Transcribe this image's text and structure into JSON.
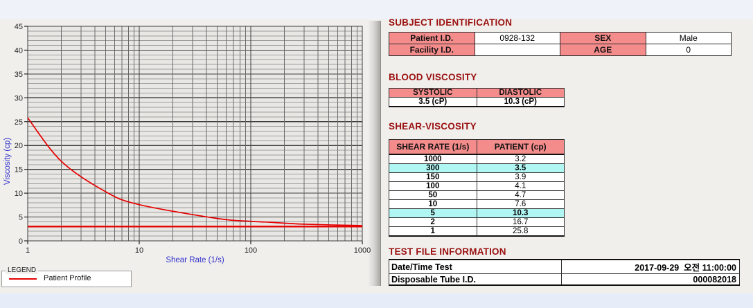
{
  "colors": {
    "title_red": "#9b1111",
    "table_header_pink": "#f58c8c",
    "highlight_cyan": "#b0f6f3",
    "curve_red": "#e60000",
    "axis_label_blue": "#3333cc",
    "grid_major": "#3d3d3d",
    "grid_minor": "#9d9d9d",
    "plot_bg": "#e8e7e4"
  },
  "chart_data": {
    "type": "line",
    "xlabel": "Shear Rate (1/s)",
    "ylabel": "Viscosity (cp)",
    "x_scale": "log",
    "xlim": [
      1,
      1000
    ],
    "ylim": [
      0,
      45
    ],
    "x_ticks": [
      "1",
      "10",
      "100",
      "1000"
    ],
    "y_major_step": 5,
    "y_minor_step": 1,
    "grid": "on",
    "series": [
      {
        "name": "Patient Profile",
        "color": "#e60000",
        "x": [
          1,
          2,
          5,
          10,
          50,
          100,
          150,
          300,
          1000
        ],
        "y": [
          25.8,
          16.7,
          10.3,
          7.6,
          4.7,
          4.1,
          3.9,
          3.5,
          3.2
        ]
      }
    ],
    "reference_line": {
      "y": 3.0,
      "color": "#e60000"
    },
    "legend": {
      "title": "LEGEND",
      "position": "bottom-left",
      "entries": [
        {
          "label": "Patient Profile",
          "color": "#e60000"
        }
      ]
    }
  },
  "subject_identification": {
    "title": "SUBJECT IDENTIFICATION",
    "rows": [
      {
        "label1": "Patient I.D.",
        "value1": "0928-132",
        "label2": "SEX",
        "value2": "Male"
      },
      {
        "label1": "Facility I.D.",
        "value1": "",
        "label2": "AGE",
        "value2": "0"
      }
    ]
  },
  "blood_viscosity": {
    "title": "BLOOD VISCOSITY",
    "headers": [
      "SYSTOLIC",
      "DIASTOLIC"
    ],
    "values": [
      "3.5 (cP)",
      "10.3 (cP)"
    ]
  },
  "shear_viscosity": {
    "title": "SHEAR-VISCOSITY",
    "headers": [
      "SHEAR RATE (1/s)",
      "PATIENT (cp)"
    ],
    "rows": [
      {
        "shear_rate": "1000",
        "patient": "3.2",
        "highlight": false
      },
      {
        "shear_rate": "300",
        "patient": "3.5",
        "highlight": true
      },
      {
        "shear_rate": "150",
        "patient": "3.9",
        "highlight": false
      },
      {
        "shear_rate": "100",
        "patient": "4.1",
        "highlight": false
      },
      {
        "shear_rate": "50",
        "patient": "4.7",
        "highlight": false
      },
      {
        "shear_rate": "10",
        "patient": "7.6",
        "highlight": false
      },
      {
        "shear_rate": "5",
        "patient": "10.3",
        "highlight": true
      },
      {
        "shear_rate": "2",
        "patient": "16.7",
        "highlight": false
      },
      {
        "shear_rate": "1",
        "patient": "25.8",
        "highlight": false
      }
    ]
  },
  "test_file_information": {
    "title": "TEST FILE INFORMATION",
    "rows": [
      {
        "label": "Date/Time Test",
        "value": "2017-09-29  오전 11:00:00"
      },
      {
        "label": "Disposable Tube I.D.",
        "value": "000082018"
      }
    ]
  }
}
